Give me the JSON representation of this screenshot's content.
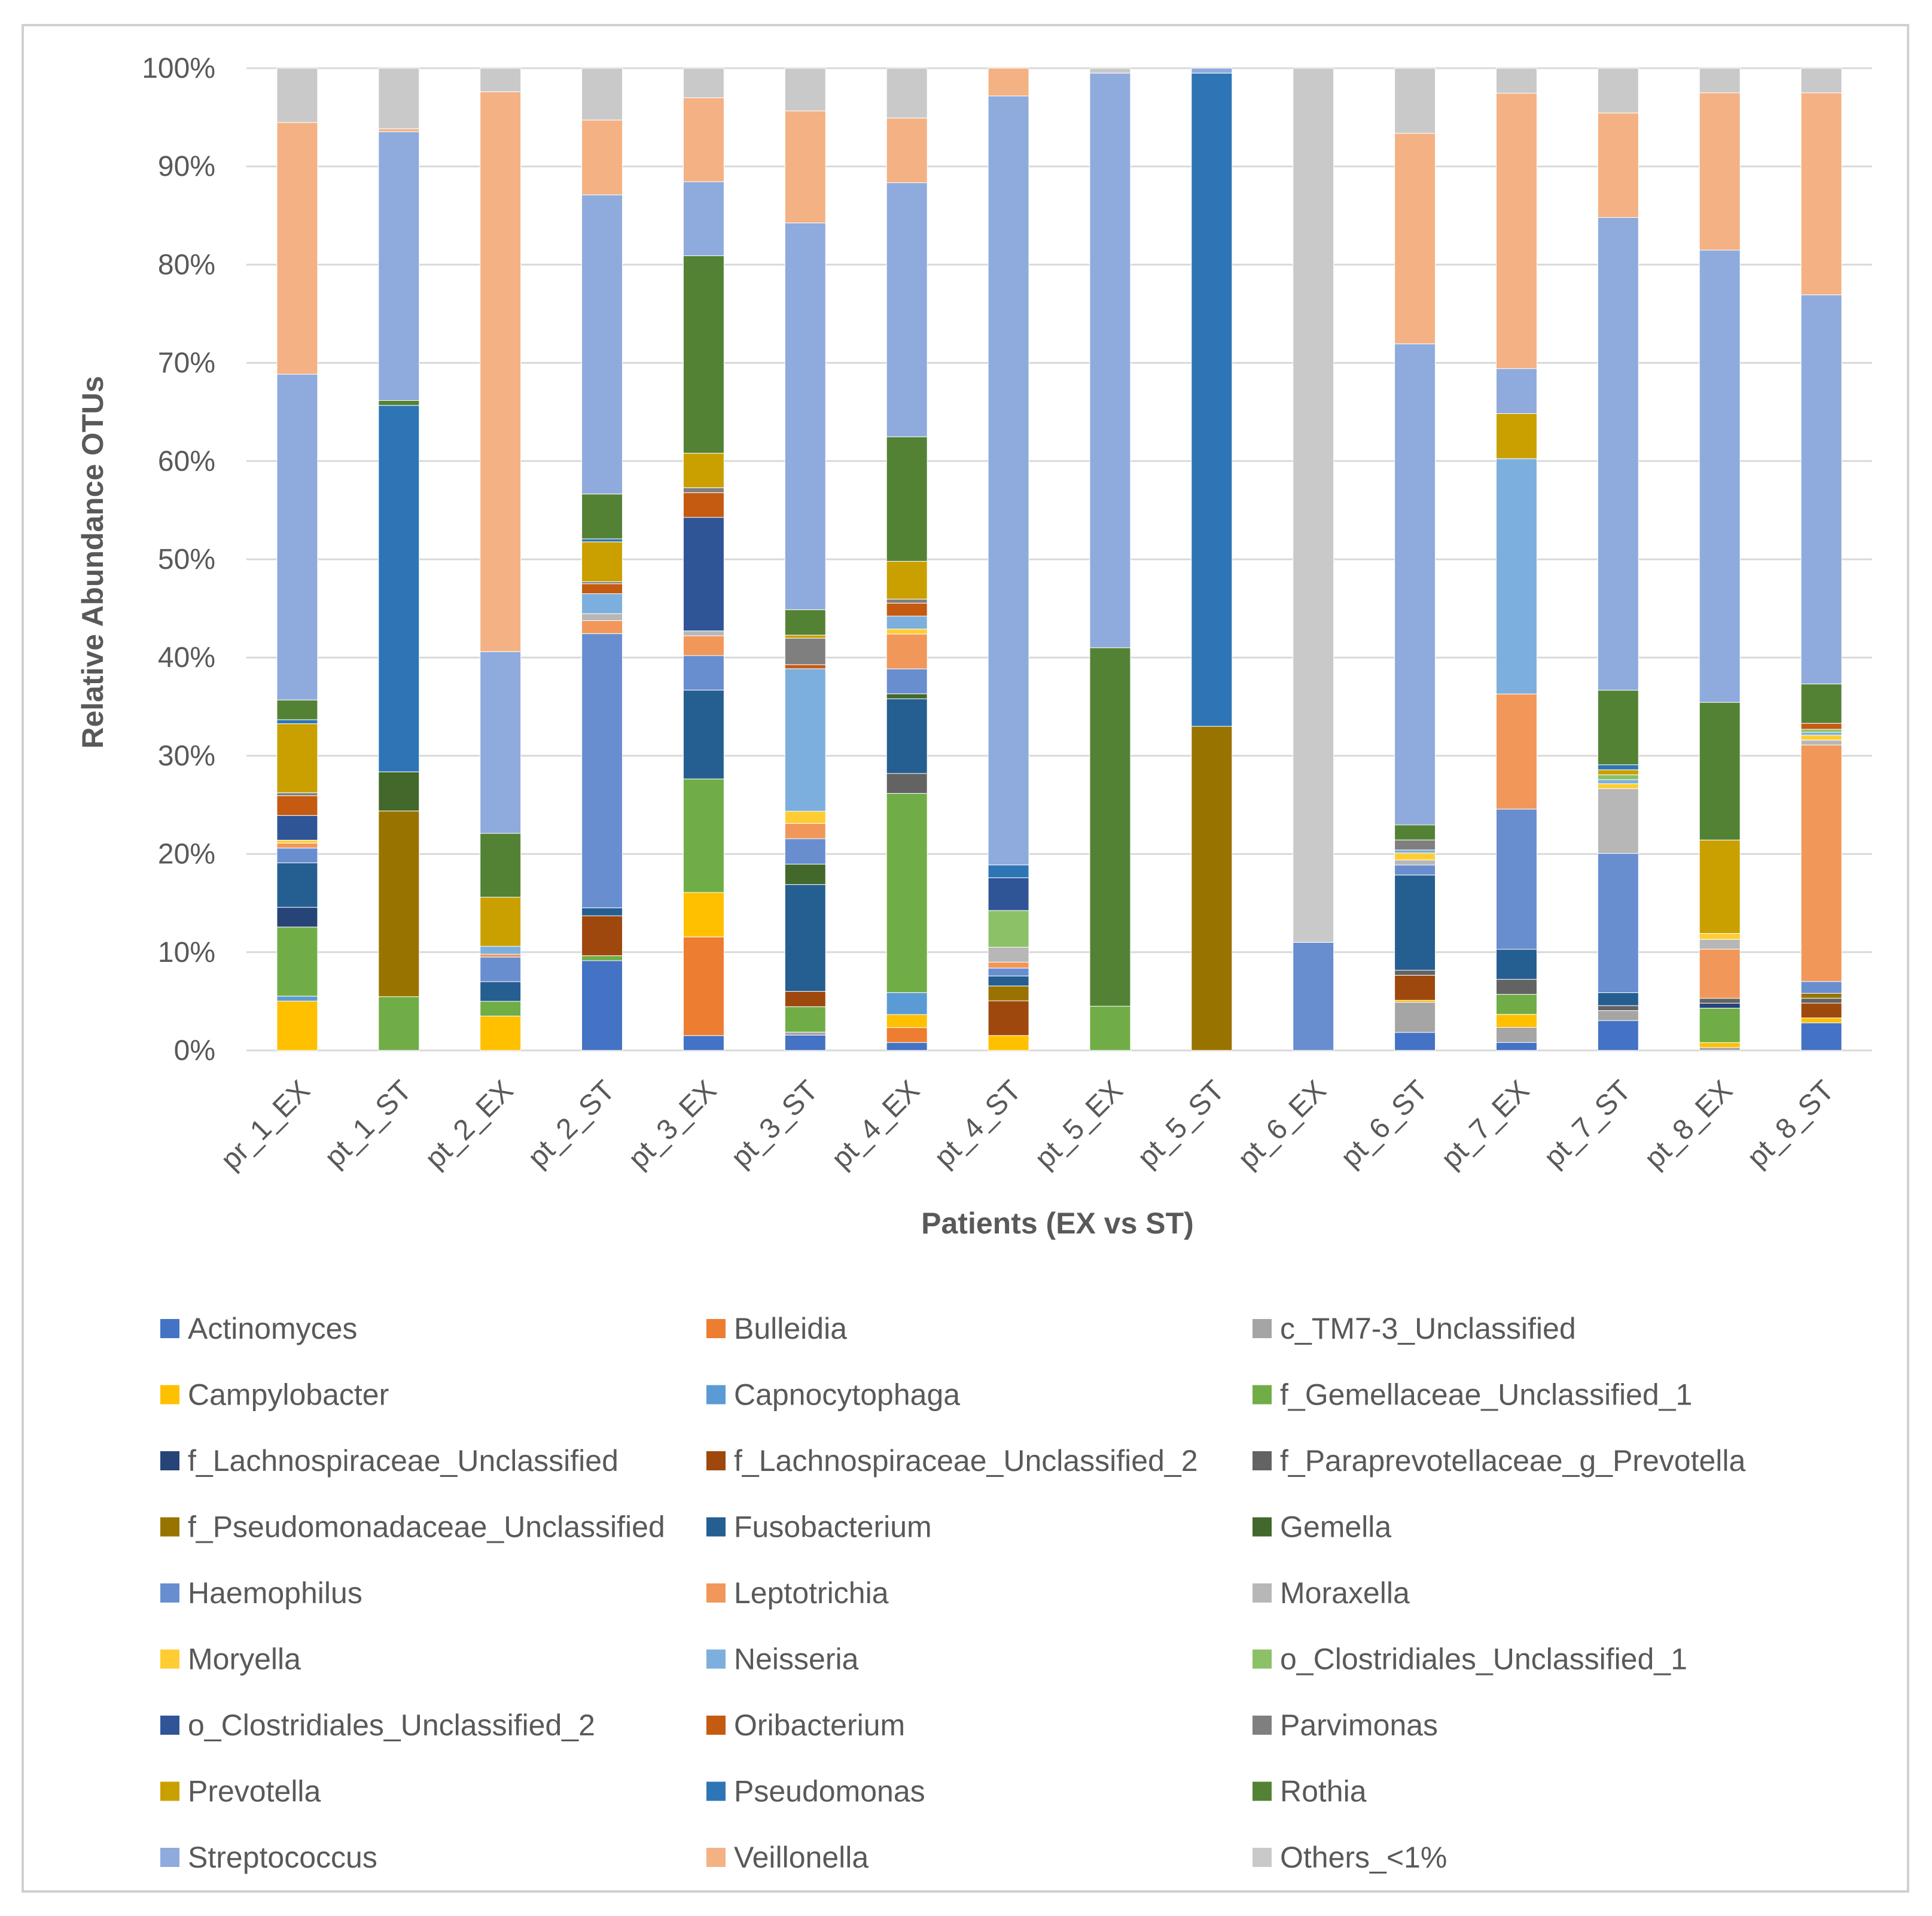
{
  "chart_data": {
    "type": "bar",
    "stacked": true,
    "percent": true,
    "title": "",
    "xlabel": "Patients (EX vs ST)",
    "ylabel": "Relative Abundance OTUs",
    "ylim": [
      0,
      100
    ],
    "yticks": [
      "0%",
      "10%",
      "20%",
      "30%",
      "40%",
      "50%",
      "60%",
      "70%",
      "80%",
      "90%",
      "100%"
    ],
    "grid": true,
    "legend_position": "bottom",
    "categories": [
      "pr_1_EX",
      "pt_1_ST",
      "pt_2_EX",
      "pt_2_ST",
      "pt_3_EX",
      "pt_3_ST",
      "pt_4_EX",
      "pt_4_ST",
      "pt_5_EX",
      "pt_5_ST",
      "pt_6_EX",
      "pt_6_ST",
      "pt_7_EX",
      "pt_7_ST",
      "pt_8_EX",
      "pt_8_ST"
    ],
    "series": [
      {
        "name": "Actinomyces",
        "color": "#4472C4",
        "values": [
          0,
          0,
          0,
          9,
          1.5,
          1.5,
          0.8,
          0,
          0,
          0,
          0,
          1.8,
          0.8,
          3,
          0,
          2.8
        ]
      },
      {
        "name": "Bulleidia",
        "color": "#ED7D31",
        "values": [
          0,
          0,
          0,
          0,
          10,
          0,
          1.5,
          0,
          0,
          0,
          0,
          0,
          0,
          0,
          0,
          0
        ]
      },
      {
        "name": "c_TM7-3_Unclassified",
        "color": "#A5A5A5",
        "values": [
          0,
          0,
          0,
          0,
          0,
          0.3,
          0,
          0,
          0,
          0,
          0,
          3,
          1.5,
          1,
          0.3,
          0
        ]
      },
      {
        "name": "Campylobacter",
        "color": "#FFC000",
        "values": [
          5,
          0,
          3.5,
          0,
          4.5,
          0,
          1.3,
          1.5,
          0,
          0,
          0,
          0.2,
          1.3,
          0,
          0.5,
          0.5
        ]
      },
      {
        "name": "Capnocytophaga",
        "color": "#5B9BD5",
        "values": [
          0.5,
          0,
          0,
          0,
          0,
          0,
          2.2,
          0,
          0,
          0,
          0,
          0,
          0,
          0,
          0,
          0
        ]
      },
      {
        "name": "f_Gemellaceae_Unclassified_1",
        "color": "#70AD47",
        "values": [
          7,
          5.5,
          1.5,
          0.5,
          11.5,
          2.5,
          20,
          0,
          4.5,
          0,
          0,
          0,
          2,
          0,
          3.5,
          0
        ]
      },
      {
        "name": "f_Lachnospiraceae_Unclassified",
        "color": "#264478",
        "values": [
          2,
          0,
          0,
          0,
          0,
          0,
          0,
          0,
          0,
          0,
          0,
          0,
          0,
          0,
          0.5,
          0
        ]
      },
      {
        "name": "f_Lachnospiraceae_Unclassified_2",
        "color": "#9E480E",
        "values": [
          0,
          0,
          0,
          4,
          0,
          1.5,
          0,
          3.5,
          0,
          0,
          0,
          2.5,
          0,
          0,
          0,
          1.5
        ]
      },
      {
        "name": "f_Paraprevotellaceae_g_Prevotella",
        "color": "#636363",
        "values": [
          0,
          0,
          0,
          0,
          0,
          0,
          2,
          0,
          0,
          0,
          0,
          0.5,
          1.5,
          0.5,
          0.5,
          0.5
        ]
      },
      {
        "name": "f_Pseudomonadaceae_Unclassified",
        "color": "#997300",
        "values": [
          0,
          19,
          0,
          0,
          0,
          0,
          0,
          1.5,
          0,
          33,
          0,
          0,
          0,
          0,
          0,
          0.5
        ]
      },
      {
        "name": "Fusobacterium",
        "color": "#255E91",
        "values": [
          4.5,
          0,
          2,
          0.8,
          9,
          10.5,
          7.5,
          1,
          0,
          0,
          0,
          9.5,
          3,
          1.3,
          0,
          0
        ]
      },
      {
        "name": "Gemella",
        "color": "#43682B",
        "values": [
          0,
          4,
          0,
          0,
          0,
          2,
          0.5,
          0,
          0,
          0,
          0,
          0,
          0,
          0,
          0,
          0
        ]
      },
      {
        "name": "Haemophilus",
        "color": "#698ED0",
        "values": [
          1.5,
          0,
          2.5,
          27.5,
          3.5,
          2.5,
          2.5,
          0.8,
          0,
          0,
          11,
          1,
          14,
          14,
          0,
          1.2
        ]
      },
      {
        "name": "Leptotrichia",
        "color": "#F1975A",
        "values": [
          0.5,
          0,
          0.3,
          1.3,
          2,
          1.5,
          3.5,
          0.6,
          0,
          0,
          0,
          0,
          11.5,
          0,
          5,
          24
        ]
      },
      {
        "name": "Moraxella",
        "color": "#B7B7B7",
        "values": [
          0,
          0,
          0,
          0.7,
          0.5,
          0,
          0,
          1.5,
          0,
          0,
          0,
          0.5,
          0,
          6.5,
          1,
          0.5
        ]
      },
      {
        "name": "Moryella",
        "color": "#FFCD33",
        "values": [
          0.3,
          0,
          0,
          0,
          0,
          1.2,
          0.5,
          0,
          0,
          0,
          0,
          0.7,
          0,
          0.5,
          0.6,
          0.5
        ]
      },
      {
        "name": "Neisseria",
        "color": "#7CAFDD",
        "values": [
          0,
          0,
          0.8,
          2,
          0,
          14,
          1.3,
          0,
          0,
          0,
          0,
          0.3,
          23.5,
          0.4,
          0,
          0.3
        ]
      },
      {
        "name": "o_Clostridiales_Unclassified_1",
        "color": "#8CC168",
        "values": [
          0,
          0,
          0,
          0,
          0,
          0,
          0,
          3.7,
          0,
          0,
          0,
          0,
          0,
          0.5,
          0,
          0.3
        ]
      },
      {
        "name": "o_Clostridiales_Unclassified_2",
        "color": "#2F5597",
        "values": [
          2.5,
          0,
          0,
          0,
          11.5,
          0,
          0,
          3.3,
          0,
          0,
          0,
          0,
          0,
          0,
          0,
          0
        ]
      },
      {
        "name": "Oribacterium",
        "color": "#C55A11",
        "values": [
          2,
          0,
          0,
          1,
          2.5,
          0.4,
          1.3,
          0,
          0,
          0,
          0,
          0,
          0,
          0,
          0,
          0.6
        ]
      },
      {
        "name": "Parvimonas",
        "color": "#7F7F7F",
        "values": [
          0.3,
          0,
          0,
          0.2,
          0.5,
          2.6,
          0.4,
          0,
          0,
          0,
          0,
          1,
          0,
          0,
          0,
          0
        ]
      },
      {
        "name": "Prevotella",
        "color": "#C9A000",
        "values": [
          7,
          0,
          5,
          4,
          3.5,
          0.3,
          3.8,
          0,
          0,
          0,
          0,
          0,
          4.5,
          0.5,
          9.5,
          0
        ]
      },
      {
        "name": "Pseudomonas",
        "color": "#2E75B6",
        "values": [
          0.4,
          37.5,
          0,
          0.3,
          0,
          0,
          0,
          1.3,
          0,
          66.5,
          0,
          0,
          0,
          0.5,
          0,
          0
        ]
      },
      {
        "name": "Rothia",
        "color": "#548235",
        "values": [
          2,
          0.5,
          6.5,
          4.5,
          20,
          2.5,
          12.5,
          0,
          36.5,
          0,
          0,
          1.5,
          0,
          7.5,
          14,
          4
        ]
      },
      {
        "name": "Streptococcus",
        "color": "#8FAADC",
        "values": [
          33,
          27.5,
          18.5,
          30,
          7.5,
          38,
          25.5,
          77.5,
          58.5,
          0.5,
          0,
          48,
          4.5,
          47.5,
          46,
          39.5
        ]
      },
      {
        "name": "Veillonella",
        "color": "#F4B183",
        "values": [
          25.5,
          0.3,
          57,
          7.5,
          8.5,
          11,
          6.5,
          2.8,
          0,
          0,
          0,
          21,
          27.5,
          10.5,
          16,
          20.5
        ]
      },
      {
        "name": "Others_<1%",
        "color": "#C9C9C9",
        "values": [
          5.5,
          6.2,
          2.4,
          5.2,
          3,
          4.2,
          5,
          0,
          0.5,
          0,
          89,
          6.5,
          2.5,
          4.5,
          2.5,
          2.5
        ]
      }
    ]
  }
}
